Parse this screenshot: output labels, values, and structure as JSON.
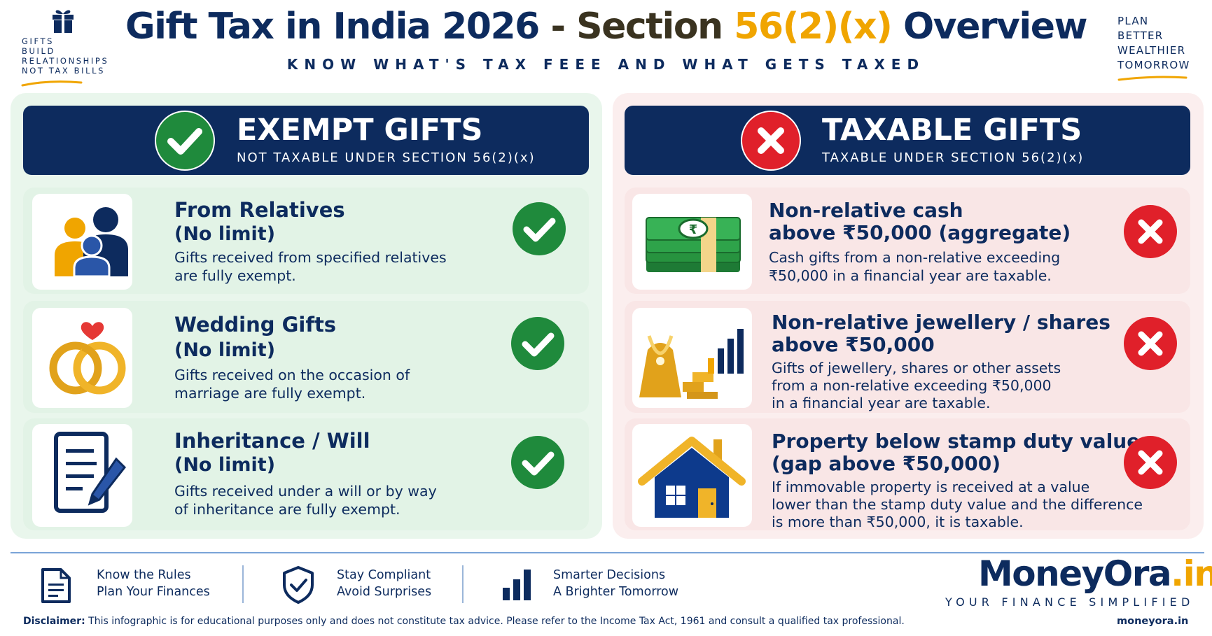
{
  "header": {
    "logo_lines": [
      "GIFTS",
      "BUILD",
      "RELATIONSHIPS",
      "NOT TAX BILLS"
    ],
    "title_part1": "Gift Tax in India 2026",
    "title_dash": " - ",
    "title_part2": "Section ",
    "title_highlight": "56(2)(x)",
    "title_part3": " Overview",
    "subtitle": "KNOW WHAT'S TAX FEEE AND WHAT GETS TAXED",
    "tagline_lines": [
      "PLAN",
      "BETTER",
      "WEALTHIER",
      "TOMORROW"
    ]
  },
  "exempt": {
    "title": "EXEMPT GIFTS",
    "subtitle": "NOT TAXABLE UNDER SECTION 56(2)(x)",
    "items": [
      {
        "title": "From Relatives",
        "limit": "(No limit)",
        "desc": [
          "Gifts received from specified relatives",
          "are fully exempt."
        ],
        "icon": "family-icon"
      },
      {
        "title": "Wedding Gifts",
        "limit": "(No limit)",
        "desc": [
          "Gifts received on the occasion of",
          "marriage are fully exempt."
        ],
        "icon": "wedding-rings-icon"
      },
      {
        "title": "Inheritance / Will",
        "limit": "(No limit)",
        "desc": [
          "Gifts received under a will or by way",
          "of inheritance are fully exempt."
        ],
        "icon": "document-pen-icon"
      }
    ]
  },
  "taxable": {
    "title": "TAXABLE GIFTS",
    "subtitle": "TAXABLE UNDER SECTION 56(2)(x)",
    "items": [
      {
        "title": [
          "Non-relative cash",
          "above ₹50,000 (aggregate)"
        ],
        "desc": [
          "Cash gifts from a non-relative exceeding",
          "₹50,000 in a financial year are taxable."
        ],
        "icon": "cash-stack-icon"
      },
      {
        "title": [
          "Non-relative jewellery / shares",
          "above ₹50,000"
        ],
        "desc": [
          "Gifts of jewellery, shares or other assets",
          "from a non-relative exceeding ₹50,000",
          "in a financial year are taxable."
        ],
        "icon": "jewellery-shares-icon"
      },
      {
        "title": [
          "Property below stamp duty value",
          "(gap above ₹50,000)"
        ],
        "desc": [
          "If immovable property is received at a value",
          "lower than the stamp duty value and the difference",
          "is more than ₹50,000, it is taxable."
        ],
        "icon": "house-icon"
      }
    ],
    "currency_symbol": "₹"
  },
  "footer": {
    "items": [
      {
        "lines": [
          "Know the Rules",
          "Plan Your Finances"
        ],
        "icon": "document-icon"
      },
      {
        "lines": [
          "Stay Compliant",
          "Avoid Surprises"
        ],
        "icon": "shield-check-icon"
      },
      {
        "lines": [
          "Smarter Decisions",
          "A Brighter Tomorrow"
        ],
        "icon": "bar-chart-icon"
      }
    ],
    "brand_main": "MoneyOra",
    "brand_suffix": ".in",
    "brand_tagline": "YOUR FINANCE SIMPLIFIED",
    "disclaimer_label": "Disclaimer:",
    "disclaimer_text": " This infographic is for educational purposes only and does not constitute tax advice. Please refer to the Income Tax Act, 1961 and consult a qualified tax professional.",
    "url": "moneyora.in"
  },
  "colors": {
    "navy": "#0d2b5e",
    "gold": "#f0a500",
    "green": "#1f8a3c",
    "red": "#e0202a",
    "exempt_bg": "#e9f6ec",
    "taxable_bg": "#fbeeee"
  }
}
